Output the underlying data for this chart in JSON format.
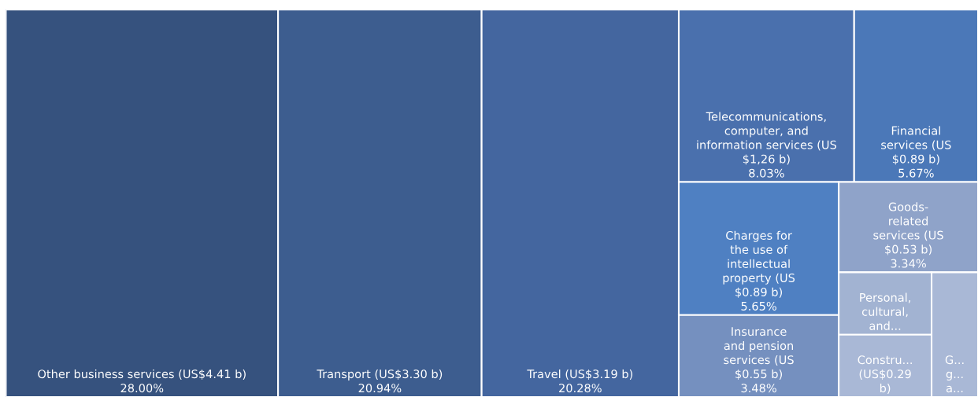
{
  "chart_data": {
    "type": "other",
    "categories": [
      "Other business services (US$4.41 b)",
      "Transport (US$3.30 b)",
      "Travel (US$3.19 b)",
      "Telecommunications,\ncomputer, and\ninformation services (US\n$1,26 b)",
      "Financial\nservices (US\n$0.89 b)",
      "Charges for\nthe use of\nintellectual\nproperty (US\n$0.89 b)",
      "Insurance\nand pension\nservices (US\n$0.55 b)",
      "Goods-\nrelated\nservices (US\n$0.53 b)",
      "Personal,\ncultural,\nand...",
      "Constru...\n(US$0.29\nb)",
      "G...\ng...\na..."
    ],
    "values": [
      28.0,
      20.94,
      20.28,
      8.03,
      5.67,
      5.65,
      3.48,
      3.34,
      null,
      null,
      null
    ],
    "value_labels": [
      "28.00%",
      "20.94%",
      "20.28%",
      "8.03%",
      "5.67%",
      "5.65%",
      "3.48%",
      "3.34%",
      null,
      null,
      null
    ],
    "colors": [
      "#36527e",
      "#3d5d8f",
      "#44669f",
      "#4a70ad",
      "#4b78b8",
      "#4f80c2",
      "#7590bf",
      "#8fa3c9",
      "#a2b3d2",
      "#a9b8d6",
      "#a9b8d6"
    ]
  }
}
